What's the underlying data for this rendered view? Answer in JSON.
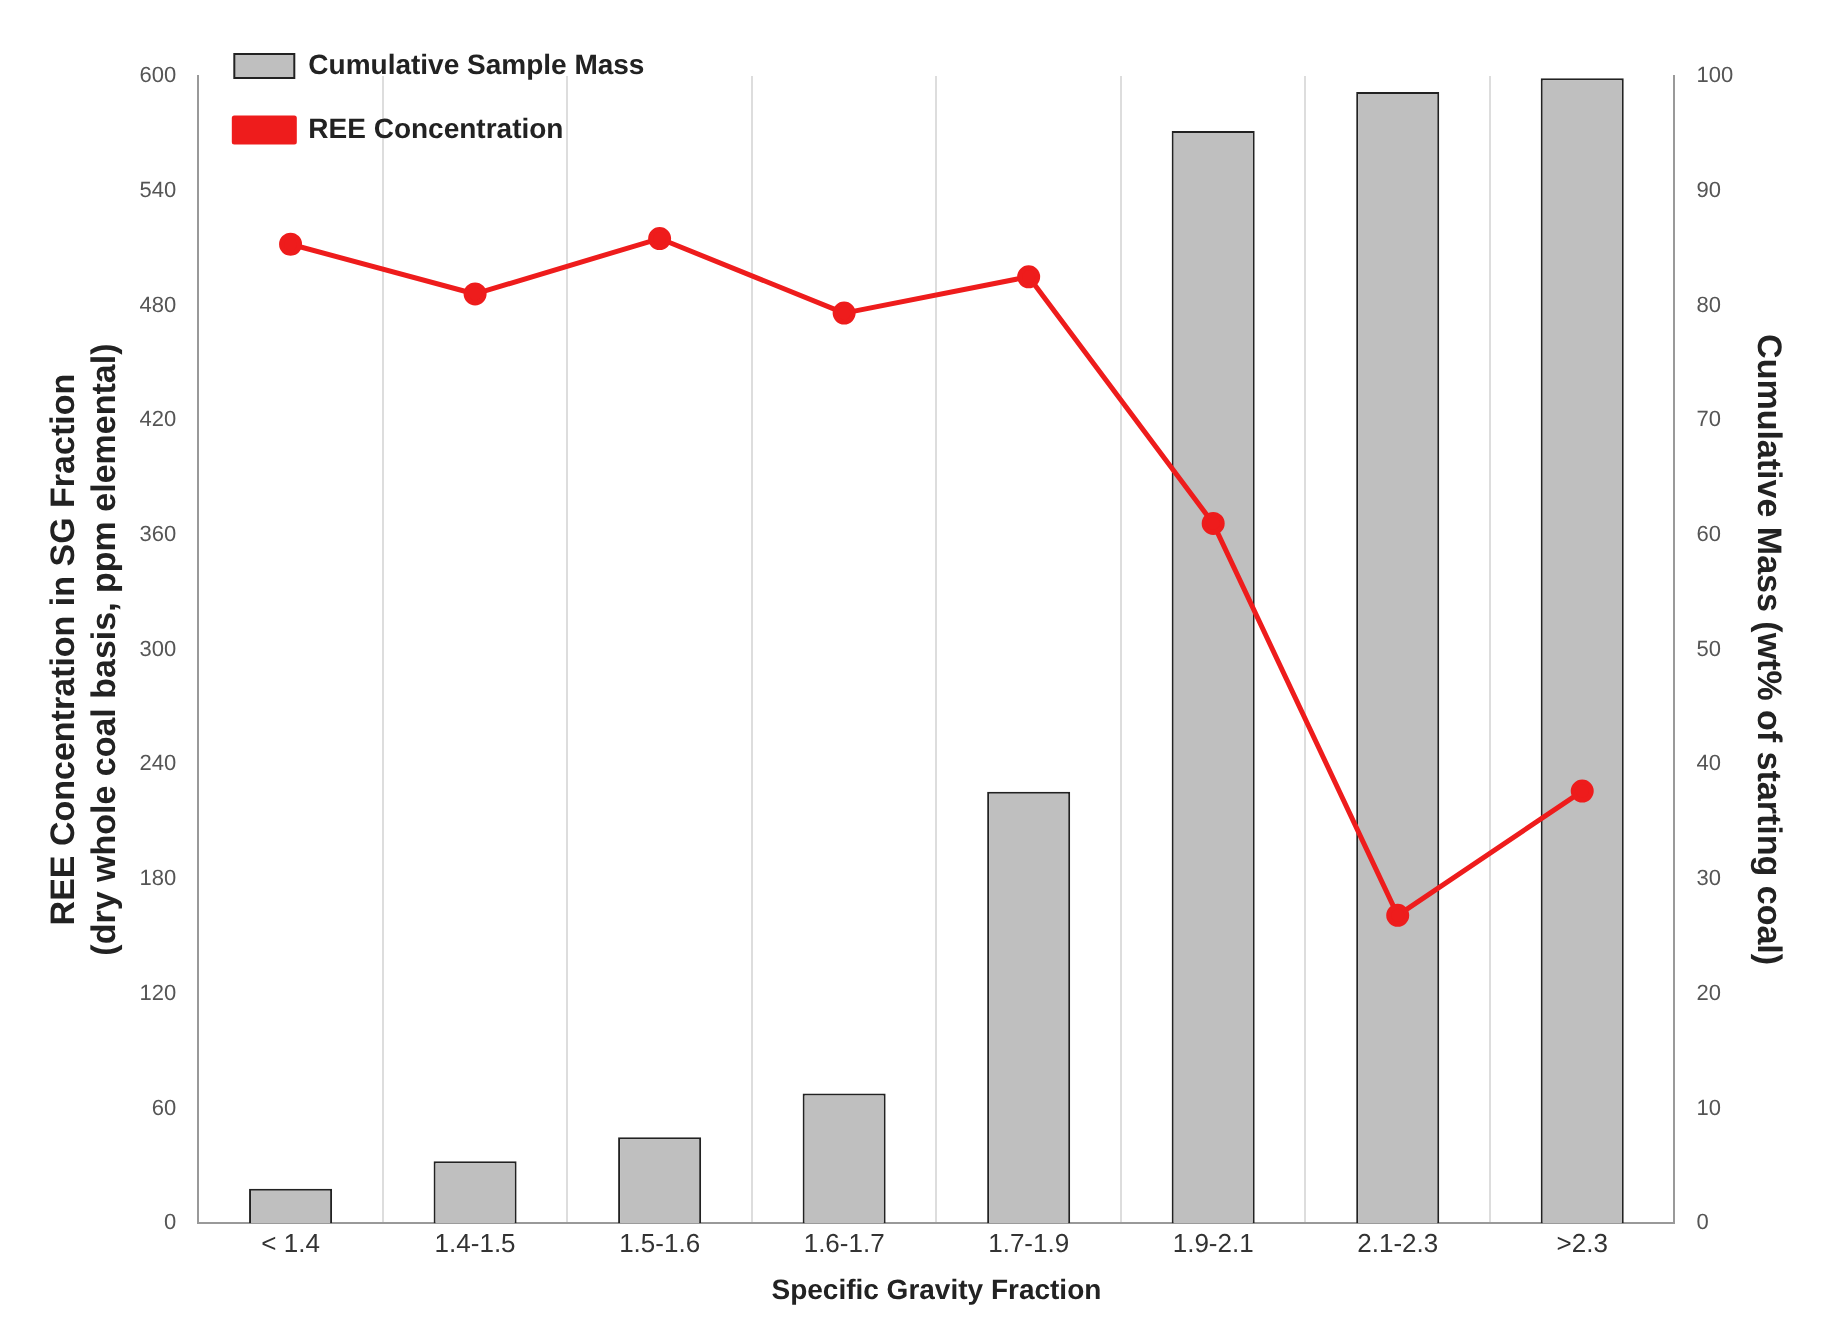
{
  "chart_data": {
    "type": "bar",
    "xlabel": "Specific Gravity Fraction",
    "ylabel": "REE Concentration in SG Fraction\n(dry whole coal basis, ppm elemental)",
    "y2label": "Cumulative Mass (wt% of starting coal)",
    "categories": [
      "< 1.4",
      "1.4-1.5",
      "1.5-1.6",
      "1.6-1.7",
      "1.7-1.9",
      "1.9-2.1",
      "2.1-2.3",
      ">2.3"
    ],
    "series": [
      {
        "name": "Cumulative Sample Mass",
        "color": "#bfbfbf",
        "axis": "y2",
        "values": [
          3,
          5.4,
          7.5,
          11.3,
          37.6,
          95.2,
          98.6,
          99.8
        ]
      },
      {
        "name": "REE Concentration",
        "type": "line",
        "color": "#ee1c1c",
        "marker": "circle",
        "values": [
          512,
          486,
          515,
          476,
          495,
          366,
          161,
          226
        ]
      }
    ],
    "ylim": [
      0,
      600
    ],
    "yticks": [
      0,
      60,
      120,
      180,
      240,
      300,
      360,
      420,
      480,
      540,
      600
    ],
    "y2lim": [
      0,
      100
    ],
    "y2ticks": [
      0,
      10,
      20,
      30,
      40,
      50,
      60,
      70,
      80,
      90,
      100
    ],
    "grid": "x",
    "legend": "top left"
  }
}
